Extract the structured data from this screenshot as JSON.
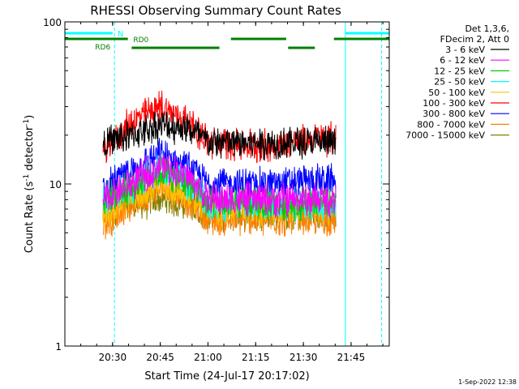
{
  "chart_data": {
    "type": "line",
    "title": "RHESSI Observing Summary Count Rates",
    "xlabel": "Start Time (24-Jul-17 20:17:02)",
    "ylabel_main": "Count Rate (s",
    "ylabel_sup1": "-1",
    "ylabel_mid": " detector",
    "ylabel_sup2": "-1",
    "ylabel_end": ")",
    "y_scale": "log",
    "ylim": [
      1,
      100
    ],
    "xlim_minutes": [
      20.25,
      21.95
    ],
    "x_ticks": [
      {
        "value": 20.5,
        "label": "20:30"
      },
      {
        "value": 20.75,
        "label": "20:45"
      },
      {
        "value": 21.0,
        "label": "21:00"
      },
      {
        "value": 21.25,
        "label": "21:15"
      },
      {
        "value": 21.5,
        "label": "21:30"
      },
      {
        "value": 21.75,
        "label": "21:45"
      }
    ],
    "y_ticks": [
      {
        "value": 1,
        "label": "1"
      },
      {
        "value": 10,
        "label": "10"
      },
      {
        "value": 100,
        "label": "100"
      }
    ],
    "legend_header": [
      "Det 1,3,6,",
      "FDecim 2, Att 0"
    ],
    "legend_position": "right",
    "series": [
      {
        "name": "3 - 6 keV",
        "color": "#000000",
        "points": [
          [
            20.45,
            18
          ],
          [
            20.6,
            20
          ],
          [
            20.75,
            23
          ],
          [
            20.9,
            22
          ],
          [
            21.0,
            18
          ],
          [
            21.3,
            18
          ],
          [
            21.55,
            18
          ],
          [
            21.67,
            18
          ]
        ]
      },
      {
        "name": "6 - 12 keV",
        "color": "#ff00ff",
        "points": [
          [
            20.45,
            8
          ],
          [
            20.6,
            10
          ],
          [
            20.75,
            13
          ],
          [
            20.9,
            11
          ],
          [
            21.0,
            8
          ],
          [
            21.3,
            8
          ],
          [
            21.55,
            8
          ],
          [
            21.67,
            8
          ]
        ]
      },
      {
        "name": "12 - 25 keV",
        "color": "#00cc00",
        "points": [
          [
            20.45,
            8
          ],
          [
            20.6,
            9.5
          ],
          [
            20.75,
            12
          ],
          [
            20.9,
            10
          ],
          [
            21.0,
            7.5
          ],
          [
            21.3,
            7.5
          ],
          [
            21.55,
            7.5
          ],
          [
            21.67,
            7.5
          ]
        ]
      },
      {
        "name": "25 - 50 keV",
        "color": "#00ffff",
        "points": [
          [
            20.45,
            7.5
          ],
          [
            20.6,
            9.5
          ],
          [
            20.75,
            12.5
          ],
          [
            20.9,
            10
          ],
          [
            21.0,
            7.5
          ],
          [
            21.3,
            7.5
          ],
          [
            21.55,
            7.5
          ],
          [
            21.67,
            7.5
          ]
        ]
      },
      {
        "name": "50 - 100 keV",
        "color": "#ffc000",
        "points": [
          [
            20.45,
            6.5
          ],
          [
            20.6,
            8
          ],
          [
            20.75,
            10
          ],
          [
            20.9,
            8.5
          ],
          [
            21.0,
            7
          ],
          [
            21.3,
            7
          ],
          [
            21.55,
            7
          ],
          [
            21.67,
            7
          ]
        ]
      },
      {
        "name": "100 - 300 keV",
        "color": "#ff0000",
        "points": [
          [
            20.45,
            15
          ],
          [
            20.6,
            24
          ],
          [
            20.75,
            30
          ],
          [
            20.9,
            24
          ],
          [
            21.0,
            18
          ],
          [
            21.3,
            17
          ],
          [
            21.55,
            19
          ],
          [
            21.67,
            19
          ]
        ]
      },
      {
        "name": "300 - 800 keV",
        "color": "#0000ff",
        "points": [
          [
            20.45,
            9
          ],
          [
            20.6,
            12
          ],
          [
            20.75,
            15
          ],
          [
            20.9,
            12.5
          ],
          [
            21.0,
            10
          ],
          [
            21.3,
            10
          ],
          [
            21.55,
            10.5
          ],
          [
            21.67,
            10.5
          ]
        ]
      },
      {
        "name": "800 - 7000 keV",
        "color": "#ff8000",
        "points": [
          [
            20.45,
            5.5
          ],
          [
            20.6,
            7.5
          ],
          [
            20.75,
            9.5
          ],
          [
            20.9,
            8
          ],
          [
            21.0,
            6
          ],
          [
            21.3,
            6
          ],
          [
            21.55,
            6
          ],
          [
            21.67,
            6
          ]
        ]
      },
      {
        "name": "7000 - 15000 keV",
        "color": "#808000",
        "points": [
          [
            20.45,
            6.5
          ],
          [
            20.6,
            7.5
          ],
          [
            20.75,
            8
          ],
          [
            20.9,
            7.5
          ],
          [
            21.0,
            6.5
          ],
          [
            21.3,
            6.5
          ],
          [
            21.55,
            6.5
          ],
          [
            21.67,
            6.5
          ]
        ]
      }
    ],
    "night_bars": {
      "label": "N",
      "color": "#00ffff",
      "segments": [
        [
          20.25,
          20.5
        ],
        [
          21.72,
          21.95
        ]
      ]
    },
    "rd_flags": [
      {
        "label": "RD0",
        "color": "#008000",
        "segments": [
          [
            20.25,
            20.58
          ],
          [
            21.12,
            21.41
          ],
          [
            21.66,
            21.95
          ]
        ]
      },
      {
        "label": "RD6",
        "color": "#008000",
        "segments": [
          [
            20.6,
            21.06
          ],
          [
            21.42,
            21.56
          ]
        ]
      }
    ],
    "vlines": [
      {
        "x": 20.25,
        "color": "#00ffff",
        "style": "solid"
      },
      {
        "x": 20.51,
        "color": "#00ffff",
        "style": "dashed"
      },
      {
        "x": 21.72,
        "color": "#00ffff",
        "style": "solid"
      },
      {
        "x": 21.91,
        "color": "#00ffff",
        "style": "dashed"
      }
    ],
    "footer_date": "1-Sep-2022 12:38"
  }
}
